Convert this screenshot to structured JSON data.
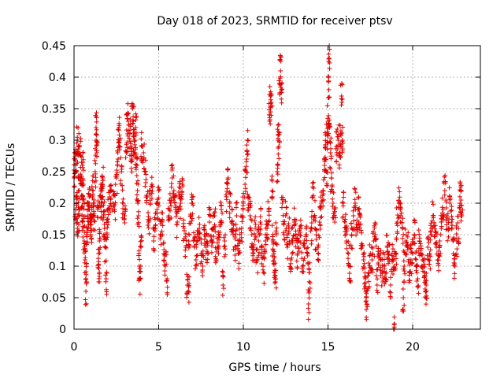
{
  "chart_data": {
    "type": "scatter",
    "title": "Day 018 of 2023, SRMTID for receiver ptsv",
    "xlabel": "GPS time / hours",
    "ylabel": "SRMTID / TECUs",
    "xlim": [
      0,
      24
    ],
    "ylim": [
      0,
      0.45
    ],
    "x_ticks": [
      0,
      5,
      10,
      15,
      20
    ],
    "x_tick_labels": [
      "0",
      "5",
      "10",
      "15",
      "20"
    ],
    "y_ticks": [
      0,
      0.05,
      0.1,
      0.15,
      0.2,
      0.25,
      0.3,
      0.35,
      0.4,
      0.45
    ],
    "y_tick_labels": [
      "0",
      "0.05",
      "0.1",
      "0.15",
      "0.2",
      "0.25",
      "0.3",
      "0.35",
      "0.4",
      "0.45"
    ],
    "grid": true,
    "marker": "plus",
    "marker_color": "#e00000",
    "series": [
      {
        "name": "ptsv",
        "points": [
          [
            0.0,
            0.24
          ],
          [
            0.05,
            0.27
          ],
          [
            0.1,
            0.26
          ],
          [
            0.1,
            0.19
          ],
          [
            0.15,
            0.21
          ],
          [
            0.2,
            0.16
          ],
          [
            0.2,
            0.3
          ],
          [
            0.25,
            0.29
          ],
          [
            0.3,
            0.22
          ],
          [
            0.3,
            0.18
          ],
          [
            0.35,
            0.28
          ],
          [
            0.4,
            0.24
          ],
          [
            0.45,
            0.21
          ],
          [
            0.5,
            0.17
          ],
          [
            0.5,
            0.26
          ],
          [
            0.55,
            0.23
          ],
          [
            0.6,
            0.14
          ],
          [
            0.6,
            0.2
          ],
          [
            0.65,
            0.11
          ],
          [
            0.7,
            0.08
          ],
          [
            0.7,
            0.06
          ],
          [
            0.75,
            0.15
          ],
          [
            0.8,
            0.18
          ],
          [
            0.85,
            0.19
          ],
          [
            0.9,
            0.21
          ],
          [
            0.95,
            0.17
          ],
          [
            1.0,
            0.16
          ],
          [
            1.05,
            0.19
          ],
          [
            1.1,
            0.22
          ],
          [
            1.15,
            0.2
          ],
          [
            1.2,
            0.18
          ],
          [
            1.25,
            0.25
          ],
          [
            1.3,
            0.32
          ],
          [
            1.3,
            0.3
          ],
          [
            1.35,
            0.28
          ],
          [
            1.4,
            0.19
          ],
          [
            1.45,
            0.12
          ],
          [
            1.5,
            0.09
          ],
          [
            1.5,
            0.14
          ],
          [
            1.55,
            0.21
          ],
          [
            1.6,
            0.2
          ],
          [
            1.65,
            0.22
          ],
          [
            1.7,
            0.24
          ],
          [
            1.75,
            0.18
          ],
          [
            1.8,
            0.16
          ],
          [
            1.85,
            0.13
          ],
          [
            1.9,
            0.08
          ],
          [
            1.95,
            0.15
          ],
          [
            2.0,
            0.19
          ],
          [
            2.1,
            0.21
          ],
          [
            2.2,
            0.22
          ],
          [
            2.3,
            0.2
          ],
          [
            2.4,
            0.19
          ],
          [
            2.5,
            0.24
          ],
          [
            2.6,
            0.27
          ],
          [
            2.65,
            0.32
          ],
          [
            2.7,
            0.3
          ],
          [
            2.8,
            0.25
          ],
          [
            2.9,
            0.2
          ],
          [
            3.0,
            0.18
          ],
          [
            3.1,
            0.28
          ],
          [
            3.15,
            0.34
          ],
          [
            3.2,
            0.33
          ],
          [
            3.3,
            0.31
          ],
          [
            3.35,
            0.29
          ],
          [
            3.4,
            0.27
          ],
          [
            3.45,
            0.35
          ],
          [
            3.5,
            0.33
          ],
          [
            3.55,
            0.3
          ],
          [
            3.6,
            0.28
          ],
          [
            3.65,
            0.32
          ],
          [
            3.7,
            0.26
          ],
          [
            3.75,
            0.22
          ],
          [
            3.8,
            0.18
          ],
          [
            3.85,
            0.1
          ],
          [
            3.9,
            0.08
          ],
          [
            3.95,
            0.13
          ],
          [
            4.0,
            0.29
          ],
          [
            4.1,
            0.27
          ],
          [
            4.2,
            0.25
          ],
          [
            4.3,
            0.21
          ],
          [
            4.4,
            0.17
          ],
          [
            4.5,
            0.2
          ],
          [
            4.6,
            0.23
          ],
          [
            4.7,
            0.14
          ],
          [
            4.8,
            0.16
          ],
          [
            4.9,
            0.19
          ],
          [
            5.0,
            0.22
          ],
          [
            5.1,
            0.15
          ],
          [
            5.2,
            0.17
          ],
          [
            5.3,
            0.12
          ],
          [
            5.4,
            0.1
          ],
          [
            5.5,
            0.08
          ],
          [
            5.6,
            0.18
          ],
          [
            5.7,
            0.2
          ],
          [
            5.8,
            0.24
          ],
          [
            5.9,
            0.22
          ],
          [
            6.0,
            0.19
          ],
          [
            6.1,
            0.17
          ],
          [
            6.2,
            0.21
          ],
          [
            6.3,
            0.2
          ],
          [
            6.4,
            0.23
          ],
          [
            6.5,
            0.16
          ],
          [
            6.6,
            0.13
          ],
          [
            6.7,
            0.07
          ],
          [
            6.75,
            0.06
          ],
          [
            6.8,
            0.15
          ],
          [
            6.9,
            0.18
          ],
          [
            7.0,
            0.2
          ],
          [
            7.1,
            0.13
          ],
          [
            7.2,
            0.11
          ],
          [
            7.3,
            0.14
          ],
          [
            7.4,
            0.16
          ],
          [
            7.5,
            0.12
          ],
          [
            7.6,
            0.1
          ],
          [
            7.7,
            0.15
          ],
          [
            7.8,
            0.13
          ],
          [
            7.9,
            0.12
          ],
          [
            8.0,
            0.17
          ],
          [
            8.1,
            0.14
          ],
          [
            8.2,
            0.16
          ],
          [
            8.3,
            0.18
          ],
          [
            8.4,
            0.11
          ],
          [
            8.5,
            0.13
          ],
          [
            8.6,
            0.15
          ],
          [
            8.7,
            0.19
          ],
          [
            8.8,
            0.07
          ],
          [
            8.9,
            0.14
          ],
          [
            9.0,
            0.21
          ],
          [
            9.1,
            0.24
          ],
          [
            9.2,
            0.2
          ],
          [
            9.3,
            0.17
          ],
          [
            9.4,
            0.15
          ],
          [
            9.5,
            0.13
          ],
          [
            9.6,
            0.18
          ],
          [
            9.7,
            0.12
          ],
          [
            9.8,
            0.14
          ],
          [
            9.9,
            0.16
          ],
          [
            10.0,
            0.2
          ],
          [
            10.1,
            0.23
          ],
          [
            10.2,
            0.27
          ],
          [
            10.25,
            0.3
          ],
          [
            10.3,
            0.21
          ],
          [
            10.4,
            0.18
          ],
          [
            10.5,
            0.15
          ],
          [
            10.6,
            0.13
          ],
          [
            10.7,
            0.16
          ],
          [
            10.8,
            0.11
          ],
          [
            10.9,
            0.14
          ],
          [
            11.0,
            0.17
          ],
          [
            11.1,
            0.12
          ],
          [
            11.2,
            0.09
          ],
          [
            11.3,
            0.14
          ],
          [
            11.4,
            0.16
          ],
          [
            11.5,
            0.19
          ],
          [
            11.55,
            0.34
          ],
          [
            11.6,
            0.37
          ],
          [
            11.65,
            0.36
          ],
          [
            11.7,
            0.22
          ],
          [
            11.75,
            0.14
          ],
          [
            11.8,
            0.12
          ],
          [
            11.85,
            0.09
          ],
          [
            11.9,
            0.08
          ],
          [
            11.95,
            0.15
          ],
          [
            12.0,
            0.25
          ],
          [
            12.05,
            0.3
          ],
          [
            12.1,
            0.29
          ],
          [
            12.15,
            0.39
          ],
          [
            12.2,
            0.41
          ],
          [
            12.25,
            0.38
          ],
          [
            12.3,
            0.2
          ],
          [
            12.4,
            0.15
          ],
          [
            12.5,
            0.18
          ],
          [
            12.6,
            0.13
          ],
          [
            12.7,
            0.16
          ],
          [
            12.8,
            0.11
          ],
          [
            12.9,
            0.14
          ],
          [
            13.0,
            0.17
          ],
          [
            13.1,
            0.15
          ],
          [
            13.2,
            0.12
          ],
          [
            13.3,
            0.14
          ],
          [
            13.4,
            0.16
          ],
          [
            13.5,
            0.1
          ],
          [
            13.6,
            0.13
          ],
          [
            13.7,
            0.15
          ],
          [
            13.8,
            0.12
          ],
          [
            13.85,
            0.04
          ],
          [
            13.9,
            0.09
          ],
          [
            14.0,
            0.16
          ],
          [
            14.1,
            0.21
          ],
          [
            14.2,
            0.18
          ],
          [
            14.3,
            0.15
          ],
          [
            14.4,
            0.13
          ],
          [
            14.5,
            0.17
          ],
          [
            14.6,
            0.2
          ],
          [
            14.7,
            0.22
          ],
          [
            14.8,
            0.26
          ],
          [
            14.85,
            0.29
          ],
          [
            14.9,
            0.25
          ],
          [
            14.95,
            0.31
          ],
          [
            15.0,
            0.33
          ],
          [
            15.05,
            0.38
          ],
          [
            15.08,
            0.43
          ],
          [
            15.1,
            0.32
          ],
          [
            15.15,
            0.28
          ],
          [
            15.2,
            0.24
          ],
          [
            15.3,
            0.2
          ],
          [
            15.4,
            0.17
          ],
          [
            15.5,
            0.29
          ],
          [
            15.6,
            0.3
          ],
          [
            15.7,
            0.28
          ],
          [
            15.75,
            0.31
          ],
          [
            15.8,
            0.37
          ],
          [
            15.85,
            0.3
          ],
          [
            15.9,
            0.2
          ],
          [
            16.0,
            0.17
          ],
          [
            16.1,
            0.14
          ],
          [
            16.2,
            0.12
          ],
          [
            16.3,
            0.1
          ],
          [
            16.4,
            0.15
          ],
          [
            16.5,
            0.18
          ],
          [
            16.6,
            0.2
          ],
          [
            16.7,
            0.16
          ],
          [
            16.8,
            0.19
          ],
          [
            16.9,
            0.18
          ],
          [
            17.0,
            0.13
          ],
          [
            17.1,
            0.11
          ],
          [
            17.2,
            0.08
          ],
          [
            17.25,
            0.05
          ],
          [
            17.3,
            0.04
          ],
          [
            17.4,
            0.09
          ],
          [
            17.5,
            0.12
          ],
          [
            17.6,
            0.11
          ],
          [
            17.7,
            0.14
          ],
          [
            17.8,
            0.15
          ],
          [
            17.9,
            0.07
          ],
          [
            18.0,
            0.12
          ],
          [
            18.1,
            0.11
          ],
          [
            18.2,
            0.09
          ],
          [
            18.3,
            0.1
          ],
          [
            18.4,
            0.08
          ],
          [
            18.5,
            0.13
          ],
          [
            18.6,
            0.12
          ],
          [
            18.7,
            0.07
          ],
          [
            18.8,
            0.11
          ],
          [
            18.9,
            0.1
          ],
          [
            18.9,
            0.0
          ],
          [
            19.0,
            0.12
          ],
          [
            19.1,
            0.17
          ],
          [
            19.2,
            0.2
          ],
          [
            19.3,
            0.18
          ],
          [
            19.4,
            0.16
          ],
          [
            19.45,
            0.05
          ],
          [
            19.5,
            0.1
          ],
          [
            19.6,
            0.14
          ],
          [
            19.7,
            0.13
          ],
          [
            19.8,
            0.09
          ],
          [
            19.9,
            0.11
          ],
          [
            20.0,
            0.12
          ],
          [
            20.1,
            0.15
          ],
          [
            20.2,
            0.1
          ],
          [
            20.3,
            0.08
          ],
          [
            20.4,
            0.14
          ],
          [
            20.5,
            0.12
          ],
          [
            20.6,
            0.11
          ],
          [
            20.7,
            0.09
          ],
          [
            20.75,
            0.06
          ],
          [
            20.8,
            0.07
          ],
          [
            20.9,
            0.13
          ],
          [
            21.0,
            0.12
          ],
          [
            21.1,
            0.15
          ],
          [
            21.2,
            0.18
          ],
          [
            21.3,
            0.16
          ],
          [
            21.4,
            0.13
          ],
          [
            21.5,
            0.11
          ],
          [
            21.6,
            0.14
          ],
          [
            21.7,
            0.17
          ],
          [
            21.8,
            0.19
          ],
          [
            21.9,
            0.22
          ],
          [
            22.0,
            0.18
          ],
          [
            22.1,
            0.16
          ],
          [
            22.2,
            0.2
          ],
          [
            22.3,
            0.17
          ],
          [
            22.4,
            0.12
          ],
          [
            22.5,
            0.1
          ],
          [
            22.6,
            0.14
          ],
          [
            22.7,
            0.16
          ],
          [
            22.8,
            0.2
          ],
          [
            22.85,
            0.22
          ],
          [
            22.9,
            0.18
          ]
        ]
      }
    ]
  }
}
